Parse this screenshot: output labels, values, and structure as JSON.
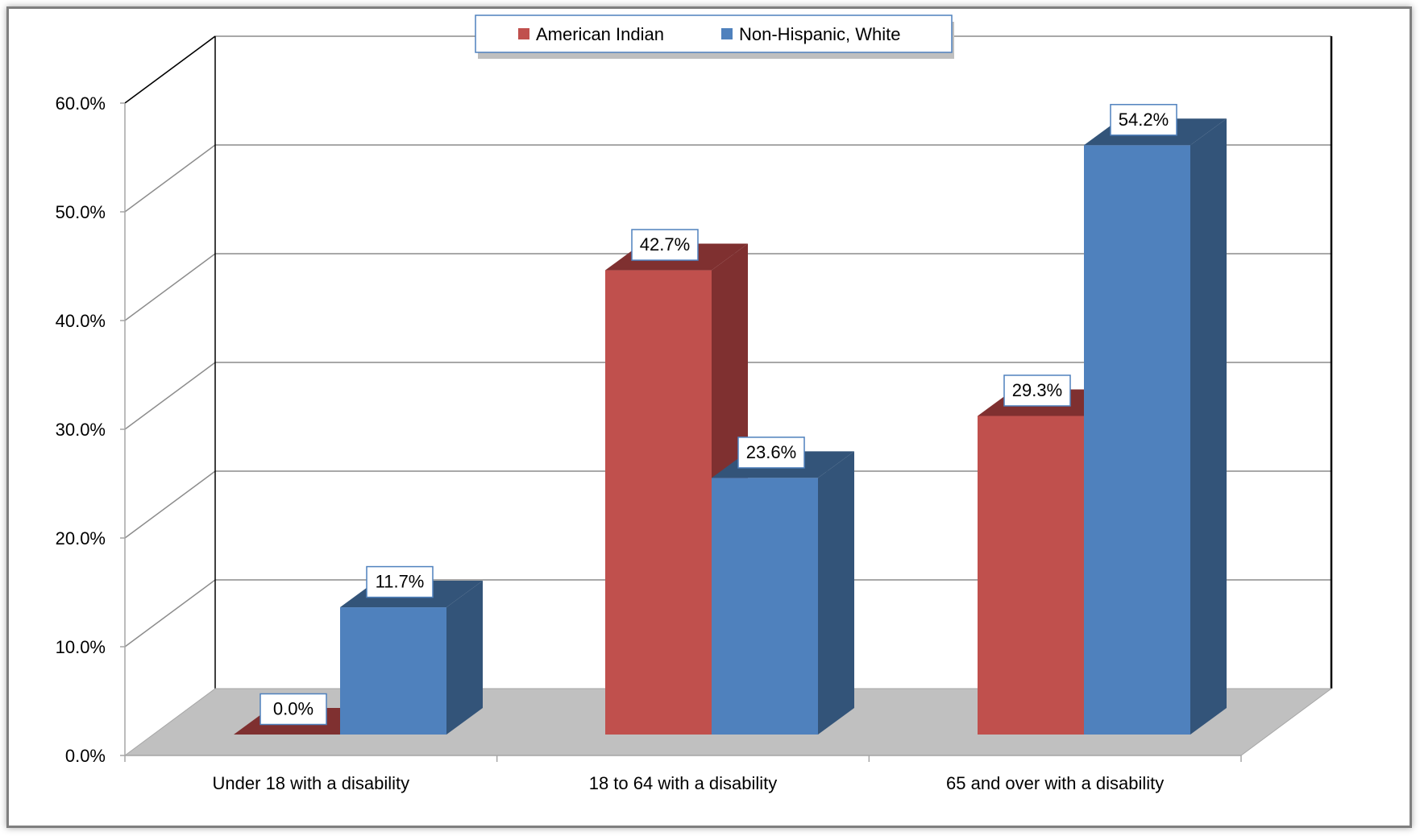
{
  "chart_data": {
    "type": "bar",
    "title": "",
    "xlabel": "",
    "ylabel": "",
    "categories": [
      "Under 18 with a disability",
      "18 to 64 with a disability",
      "65 and over with a disability"
    ],
    "series": [
      {
        "name": "American Indian",
        "values": [
          0.0,
          42.7,
          29.3
        ],
        "labels": [
          "0.0%",
          "42.7%",
          "29.3%"
        ],
        "color": "#c0504d",
        "side_color": "#7f3030"
      },
      {
        "name": "Non-Hispanic, White",
        "values": [
          11.7,
          23.6,
          54.2
        ],
        "labels": [
          "11.7%",
          "23.6%",
          "54.2%"
        ],
        "color": "#4f81bd",
        "side_color": "#335479"
      }
    ],
    "ylim": [
      0,
      60
    ],
    "yticks": [
      0,
      10,
      20,
      30,
      40,
      50,
      60
    ],
    "ytick_labels": [
      "0.0%",
      "10.0%",
      "20.0%",
      "30.0%",
      "40.0%",
      "50.0%",
      "60.0%"
    ],
    "grid": true,
    "legend_position": "top-center",
    "floor_color": "#c0c0c0"
  }
}
